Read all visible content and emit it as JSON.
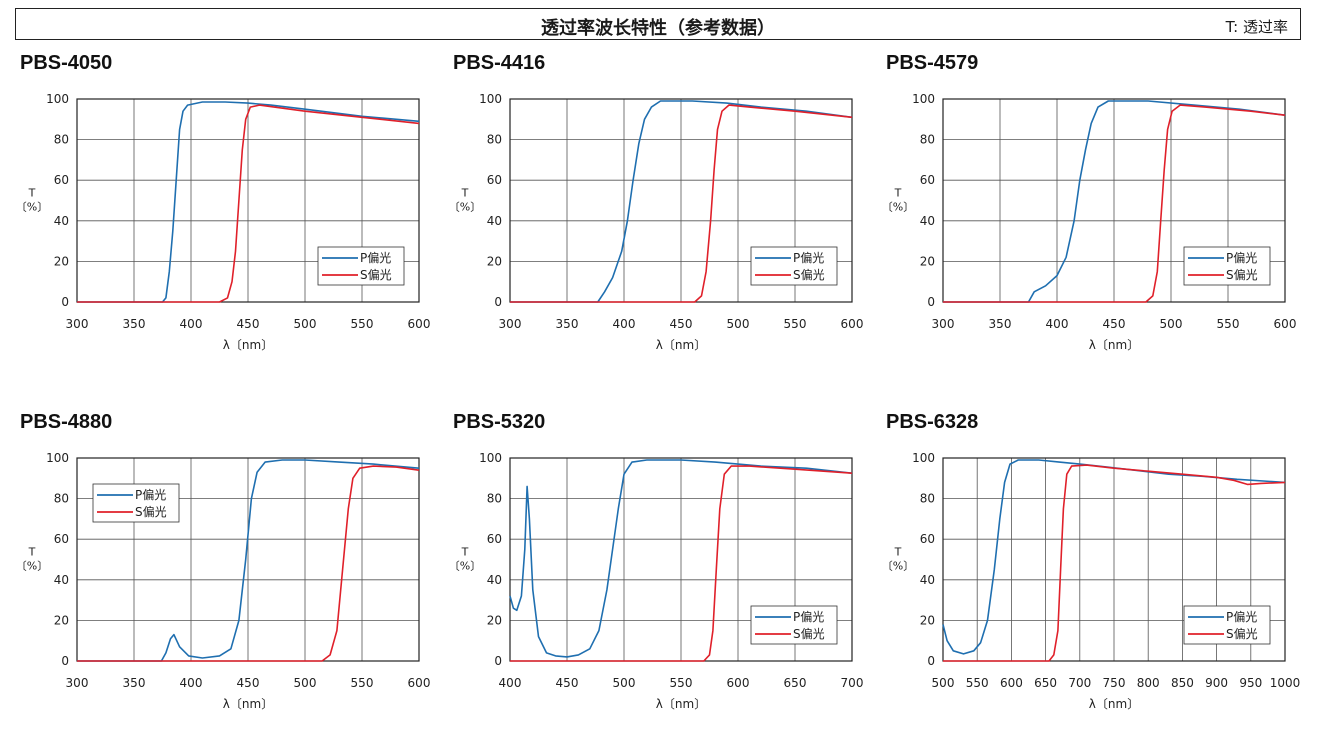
{
  "header": {
    "title": "透过率波长特性（参考数据）",
    "note": "T: 透过率"
  },
  "colors": {
    "p": "#1f6fb0",
    "s": "#e0202a",
    "grid": "#555555"
  },
  "chart_data": [
    {
      "type": "line",
      "title": "PBS-4050",
      "xlabel": "λ〔nm〕",
      "ylabel_top": "T",
      "ylabel_unit": "〔%〕",
      "xlim": [
        300,
        600
      ],
      "ylim": [
        0,
        100
      ],
      "xticks": [
        300,
        350,
        400,
        450,
        500,
        550,
        600
      ],
      "yticks": [
        0,
        20,
        40,
        60,
        80,
        100
      ],
      "legend": {
        "position": "right-center"
      },
      "series": [
        {
          "name": "P偏光",
          "color_key": "p",
          "points": [
            [
              300,
              0
            ],
            [
              375,
              0
            ],
            [
              378,
              2
            ],
            [
              381,
              15
            ],
            [
              384,
              35
            ],
            [
              387,
              60
            ],
            [
              390,
              85
            ],
            [
              393,
              94
            ],
            [
              397,
              97
            ],
            [
              410,
              98.5
            ],
            [
              430,
              98.5
            ],
            [
              450,
              98
            ],
            [
              470,
              97
            ],
            [
              500,
              95
            ],
            [
              550,
              91.5
            ],
            [
              600,
              89
            ]
          ]
        },
        {
          "name": "S偏光",
          "color_key": "s",
          "points": [
            [
              300,
              0
            ],
            [
              425,
              0
            ],
            [
              432,
              2
            ],
            [
              436,
              10
            ],
            [
              439,
              25
            ],
            [
              442,
              50
            ],
            [
              445,
              75
            ],
            [
              448,
              90
            ],
            [
              452,
              96
            ],
            [
              460,
              97
            ],
            [
              500,
              94
            ],
            [
              550,
              91
            ],
            [
              600,
              88
            ]
          ]
        }
      ]
    },
    {
      "type": "line",
      "title": "PBS-4416",
      "xlabel": "λ〔nm〕",
      "ylabel_top": "T",
      "ylabel_unit": "〔%〕",
      "xlim": [
        300,
        600
      ],
      "ylim": [
        0,
        100
      ],
      "xticks": [
        300,
        350,
        400,
        450,
        500,
        550,
        600
      ],
      "yticks": [
        0,
        20,
        40,
        60,
        80,
        100
      ],
      "legend": {
        "position": "right-center"
      },
      "series": [
        {
          "name": "P偏光",
          "color_key": "p",
          "points": [
            [
              300,
              0
            ],
            [
              377,
              0
            ],
            [
              383,
              5
            ],
            [
              390,
              12
            ],
            [
              398,
              25
            ],
            [
              403,
              40
            ],
            [
              408,
              60
            ],
            [
              413,
              78
            ],
            [
              418,
              90
            ],
            [
              424,
              96
            ],
            [
              432,
              99
            ],
            [
              460,
              99
            ],
            [
              490,
              98
            ],
            [
              520,
              96
            ],
            [
              560,
              94
            ],
            [
              600,
              91
            ]
          ]
        },
        {
          "name": "S偏光",
          "color_key": "s",
          "points": [
            [
              300,
              0
            ],
            [
              462,
              0
            ],
            [
              468,
              3
            ],
            [
              472,
              15
            ],
            [
              476,
              40
            ],
            [
              479,
              65
            ],
            [
              482,
              85
            ],
            [
              486,
              94
            ],
            [
              492,
              97
            ],
            [
              510,
              96
            ],
            [
              550,
              94
            ],
            [
              600,
              91
            ]
          ]
        }
      ]
    },
    {
      "type": "line",
      "title": "PBS-4579",
      "xlabel": "λ〔nm〕",
      "ylabel_top": "T",
      "ylabel_unit": "〔%〕",
      "xlim": [
        300,
        600
      ],
      "ylim": [
        0,
        100
      ],
      "xticks": [
        300,
        350,
        400,
        450,
        500,
        550,
        600
      ],
      "yticks": [
        0,
        20,
        40,
        60,
        80,
        100
      ],
      "legend": {
        "position": "right-center"
      },
      "series": [
        {
          "name": "P偏光",
          "color_key": "p",
          "points": [
            [
              300,
              0
            ],
            [
              375,
              0
            ],
            [
              380,
              5
            ],
            [
              390,
              8
            ],
            [
              400,
              13
            ],
            [
              408,
              22
            ],
            [
              415,
              40
            ],
            [
              420,
              60
            ],
            [
              425,
              75
            ],
            [
              430,
              88
            ],
            [
              436,
              96
            ],
            [
              445,
              99
            ],
            [
              480,
              99
            ],
            [
              520,
              97
            ],
            [
              560,
              95
            ],
            [
              600,
              92
            ]
          ]
        },
        {
          "name": "S偏光",
          "color_key": "s",
          "points": [
            [
              300,
              0
            ],
            [
              478,
              0
            ],
            [
              484,
              3
            ],
            [
              488,
              15
            ],
            [
              491,
              40
            ],
            [
              494,
              65
            ],
            [
              497,
              85
            ],
            [
              501,
              94
            ],
            [
              508,
              97
            ],
            [
              530,
              96
            ],
            [
              570,
              94
            ],
            [
              600,
              92
            ]
          ]
        }
      ]
    },
    {
      "type": "line",
      "title": "PBS-4880",
      "xlabel": "λ〔nm〕",
      "ylabel_top": "T",
      "ylabel_unit": "〔%〕",
      "xlim": [
        300,
        600
      ],
      "ylim": [
        0,
        100
      ],
      "xticks": [
        300,
        350,
        400,
        450,
        500,
        550,
        600
      ],
      "yticks": [
        0,
        20,
        40,
        60,
        80,
        100
      ],
      "legend": {
        "position": "left-upper"
      },
      "series": [
        {
          "name": "P偏光",
          "color_key": "p",
          "points": [
            [
              300,
              0
            ],
            [
              374,
              0
            ],
            [
              378,
              4
            ],
            [
              382,
              11
            ],
            [
              385,
              13
            ],
            [
              390,
              7
            ],
            [
              398,
              2.5
            ],
            [
              410,
              1.5
            ],
            [
              425,
              2.5
            ],
            [
              435,
              6
            ],
            [
              442,
              20
            ],
            [
              448,
              50
            ],
            [
              453,
              80
            ],
            [
              458,
              93
            ],
            [
              465,
              98
            ],
            [
              480,
              99
            ],
            [
              500,
              99
            ],
            [
              530,
              98
            ],
            [
              560,
              97
            ],
            [
              600,
              95
            ]
          ]
        },
        {
          "name": "S偏光",
          "color_key": "s",
          "points": [
            [
              300,
              0
            ],
            [
              515,
              0
            ],
            [
              522,
              3
            ],
            [
              528,
              15
            ],
            [
              533,
              45
            ],
            [
              538,
              75
            ],
            [
              542,
              90
            ],
            [
              548,
              95
            ],
            [
              560,
              96
            ],
            [
              580,
              95.5
            ],
            [
              600,
              94
            ]
          ]
        }
      ]
    },
    {
      "type": "line",
      "title": "PBS-5320",
      "xlabel": "λ〔nm〕",
      "ylabel_top": "T",
      "ylabel_unit": "〔%〕",
      "xlim": [
        400,
        700
      ],
      "ylim": [
        0,
        100
      ],
      "xticks": [
        400,
        450,
        500,
        550,
        600,
        650,
        700
      ],
      "yticks": [
        0,
        20,
        40,
        60,
        80,
        100
      ],
      "legend": {
        "position": "right-lower"
      },
      "series": [
        {
          "name": "P偏光",
          "color_key": "p",
          "points": [
            [
              400,
              32
            ],
            [
              403,
              26
            ],
            [
              406,
              25
            ],
            [
              410,
              32
            ],
            [
              413,
              55
            ],
            [
              415,
              86
            ],
            [
              417,
              70
            ],
            [
              420,
              35
            ],
            [
              425,
              12
            ],
            [
              432,
              4
            ],
            [
              440,
              2.5
            ],
            [
              450,
              2
            ],
            [
              460,
              3
            ],
            [
              470,
              6
            ],
            [
              478,
              15
            ],
            [
              485,
              35
            ],
            [
              490,
              55
            ],
            [
              495,
              75
            ],
            [
              500,
              92
            ],
            [
              507,
              98
            ],
            [
              520,
              99
            ],
            [
              550,
              99
            ],
            [
              580,
              98
            ],
            [
              620,
              96
            ],
            [
              660,
              95
            ],
            [
              700,
              92.5
            ]
          ]
        },
        {
          "name": "S偏光",
          "color_key": "s",
          "points": [
            [
              400,
              0
            ],
            [
              570,
              0
            ],
            [
              575,
              3
            ],
            [
              578,
              15
            ],
            [
              581,
              45
            ],
            [
              584,
              75
            ],
            [
              588,
              92
            ],
            [
              594,
              96
            ],
            [
              610,
              96
            ],
            [
              650,
              94.5
            ],
            [
              700,
              92.5
            ]
          ]
        }
      ]
    },
    {
      "type": "line",
      "title": "PBS-6328",
      "xlabel": "λ〔nm〕",
      "ylabel_top": "T",
      "ylabel_unit": "〔%〕",
      "xlim": [
        500,
        1000
      ],
      "ylim": [
        0,
        100
      ],
      "xticks": [
        500,
        550,
        600,
        650,
        700,
        750,
        800,
        850,
        900,
        950,
        1000
      ],
      "yticks": [
        0,
        20,
        40,
        60,
        80,
        100
      ],
      "legend": {
        "position": "right-lower"
      },
      "series": [
        {
          "name": "P偏光",
          "color_key": "p",
          "points": [
            [
              500,
              18
            ],
            [
              506,
              10
            ],
            [
              515,
              5
            ],
            [
              530,
              3.5
            ],
            [
              545,
              5
            ],
            [
              555,
              9
            ],
            [
              565,
              20
            ],
            [
              575,
              45
            ],
            [
              583,
              70
            ],
            [
              590,
              88
            ],
            [
              598,
              97
            ],
            [
              610,
              99
            ],
            [
              640,
              99
            ],
            [
              670,
              98
            ],
            [
              700,
              97
            ],
            [
              740,
              95.5
            ],
            [
              780,
              94
            ],
            [
              830,
              92
            ],
            [
              880,
              91
            ],
            [
              930,
              89.5
            ],
            [
              1000,
              88
            ]
          ]
        },
        {
          "name": "S偏光",
          "color_key": "s",
          "points": [
            [
              500,
              0
            ],
            [
              655,
              0
            ],
            [
              662,
              3
            ],
            [
              668,
              15
            ],
            [
              672,
              45
            ],
            [
              676,
              75
            ],
            [
              681,
              92
            ],
            [
              688,
              96
            ],
            [
              710,
              96.5
            ],
            [
              750,
              95
            ],
            [
              800,
              93.5
            ],
            [
              850,
              92
            ],
            [
              900,
              90.5
            ],
            [
              925,
              89
            ],
            [
              945,
              87
            ],
            [
              965,
              87.5
            ],
            [
              1000,
              88
            ]
          ]
        }
      ]
    }
  ]
}
